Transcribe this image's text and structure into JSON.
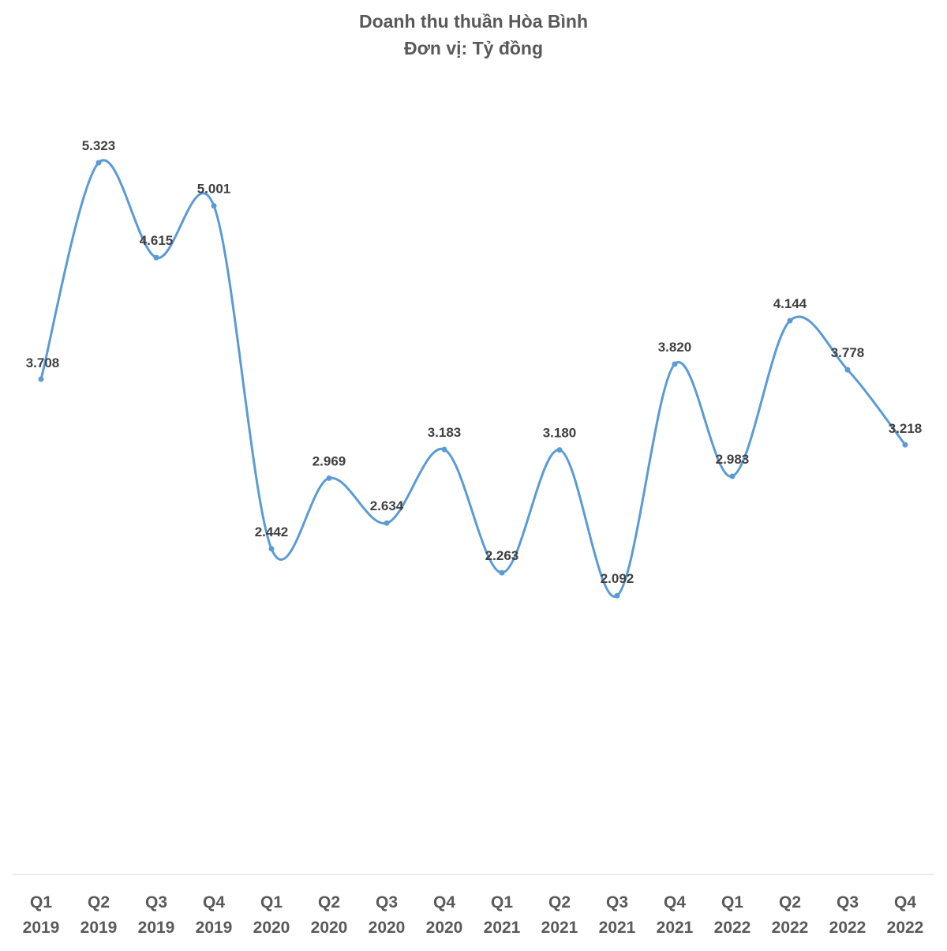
{
  "chart_data": {
    "type": "line",
    "title": "Doanh thu thuần Hòa Bình",
    "subtitle": "Đơn vị: Tỷ đồng",
    "xlabel": "",
    "ylabel": "",
    "ylim": [
      0,
      6000
    ],
    "grid": false,
    "legend": "none",
    "smooth": true,
    "line_color": "#5b9bd5",
    "categories": [
      {
        "quarter": "Q1",
        "year": "2019"
      },
      {
        "quarter": "Q2",
        "year": "2019"
      },
      {
        "quarter": "Q3",
        "year": "2019"
      },
      {
        "quarter": "Q4",
        "year": "2019"
      },
      {
        "quarter": "Q1",
        "year": "2020"
      },
      {
        "quarter": "Q2",
        "year": "2020"
      },
      {
        "quarter": "Q3",
        "year": "2020"
      },
      {
        "quarter": "Q4",
        "year": "2020"
      },
      {
        "quarter": "Q1",
        "year": "2021"
      },
      {
        "quarter": "Q2",
        "year": "2021"
      },
      {
        "quarter": "Q3",
        "year": "2021"
      },
      {
        "quarter": "Q4",
        "year": "2021"
      },
      {
        "quarter": "Q1",
        "year": "2022"
      },
      {
        "quarter": "Q2",
        "year": "2022"
      },
      {
        "quarter": "Q3",
        "year": "2022"
      },
      {
        "quarter": "Q4",
        "year": "2022"
      }
    ],
    "series": [
      {
        "name": "Doanh thu thuần",
        "values": [
          3708,
          5323,
          4615,
          5001,
          2442,
          2969,
          2634,
          3183,
          2263,
          3180,
          2092,
          3820,
          2983,
          4144,
          3778,
          3218
        ],
        "labels": [
          "3.708",
          "5.323",
          "4.615",
          "5.001",
          "2.442",
          "2.969",
          "2.634",
          "3.183",
          "2.263",
          "3.180",
          "2.092",
          "3.820",
          "2.983",
          "4.144",
          "3.778",
          "3.218"
        ]
      }
    ]
  }
}
